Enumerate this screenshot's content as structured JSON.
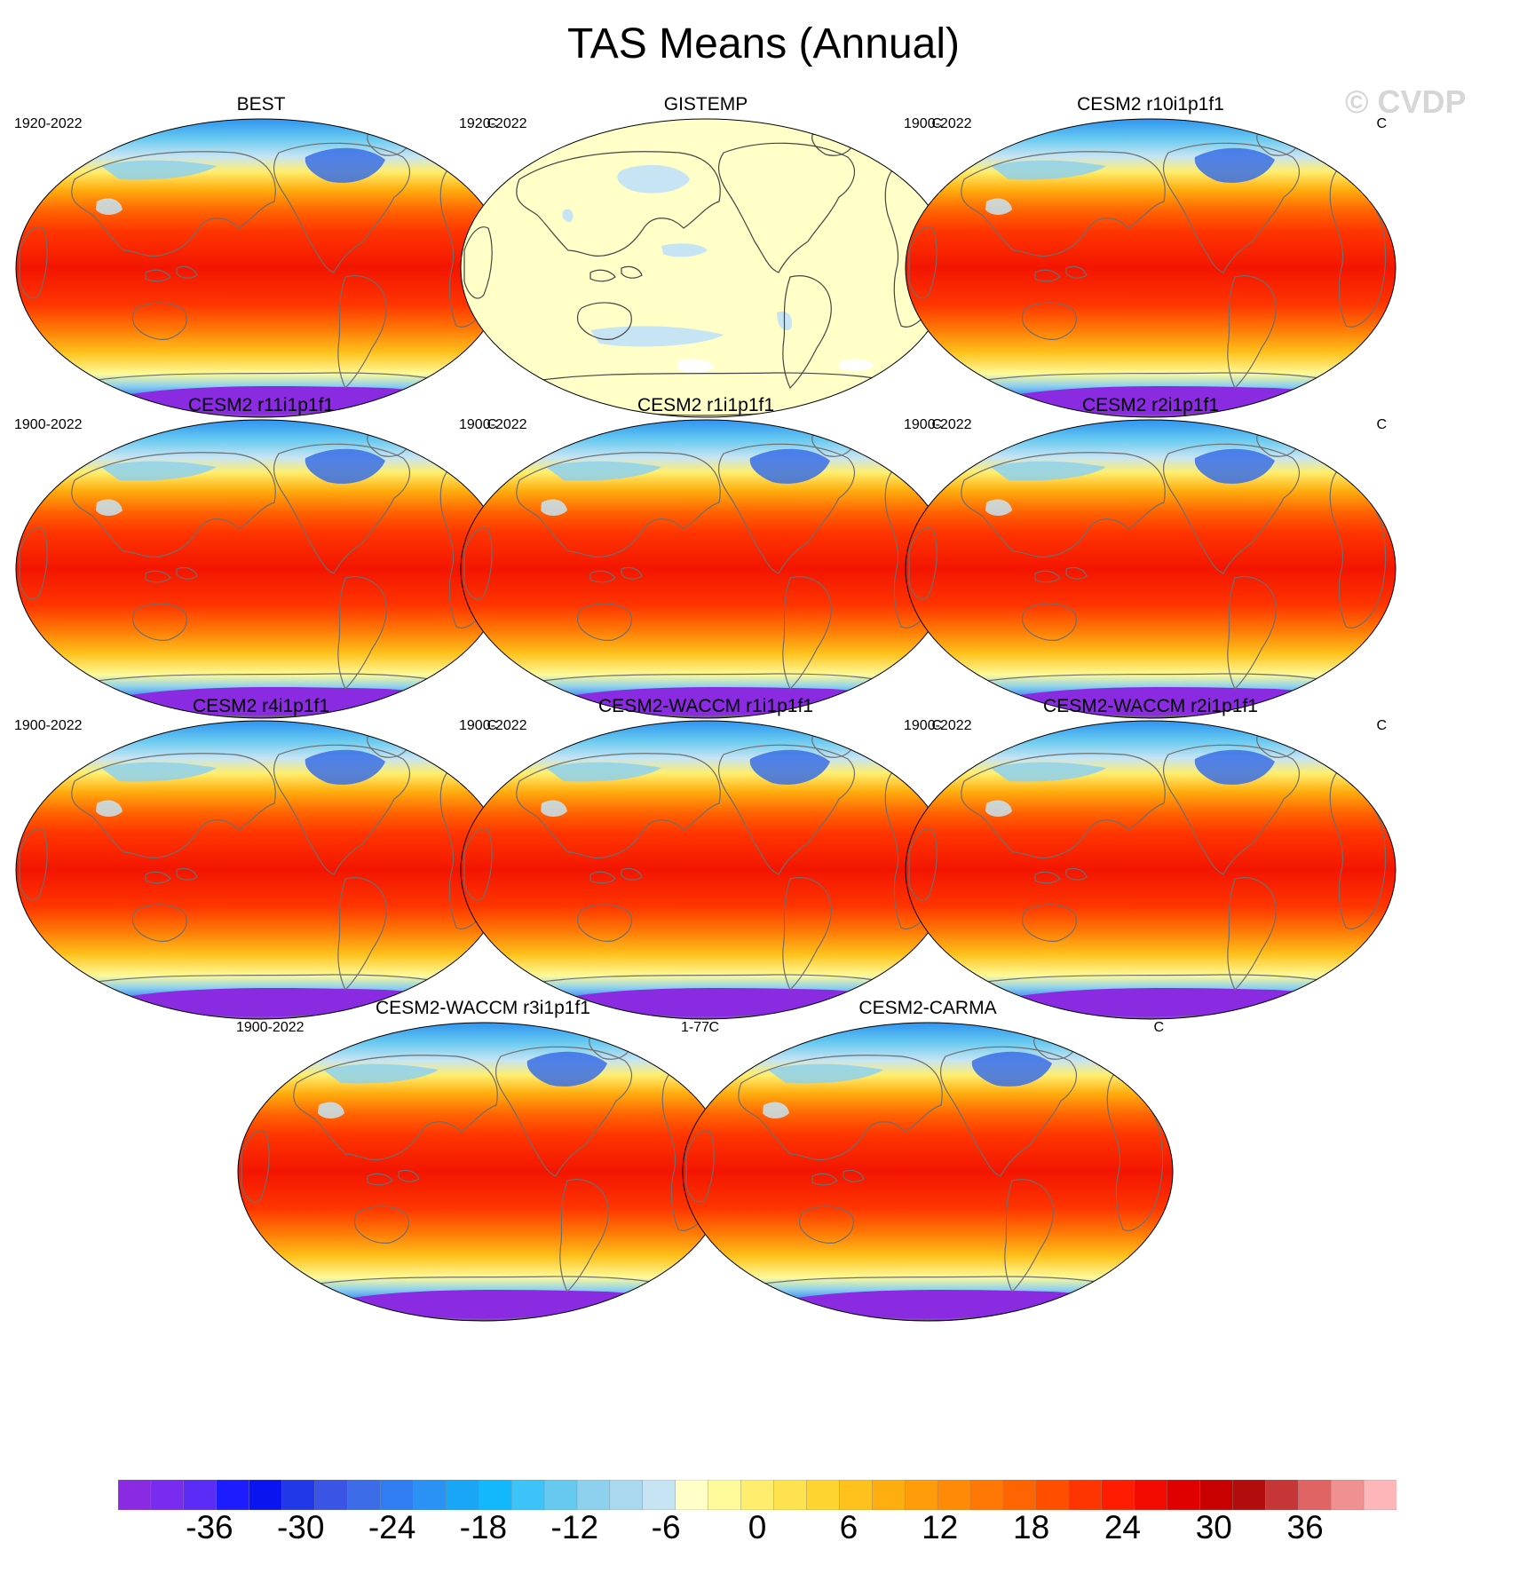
{
  "title": "TAS Means (Annual)",
  "watermark": "© CVDP",
  "units": "C",
  "panels": [
    {
      "title": "BEST",
      "period": "1920-2022",
      "units": "C",
      "style": "full"
    },
    {
      "title": "GISTEMP",
      "period": "1920-2022",
      "units": "C",
      "style": "anomaly"
    },
    {
      "title": "CESM2 r10i1p1f1",
      "period": "1900-2022",
      "units": "C",
      "style": "full"
    },
    {
      "title": "CESM2 r11i1p1f1",
      "period": "1900-2022",
      "units": "C",
      "style": "full"
    },
    {
      "title": "CESM2 r1i1p1f1",
      "period": "1900-2022",
      "units": "C",
      "style": "full"
    },
    {
      "title": "CESM2 r2i1p1f1",
      "period": "1900-2022",
      "units": "C",
      "style": "full"
    },
    {
      "title": "CESM2 r4i1p1f1",
      "period": "1900-2022",
      "units": "C",
      "style": "full"
    },
    {
      "title": "CESM2-WACCM r1i1p1f1",
      "period": "1900-2022",
      "units": "C",
      "style": "full"
    },
    {
      "title": "CESM2-WACCM r2i1p1f1",
      "period": "1900-2022",
      "units": "C",
      "style": "full"
    },
    {
      "title": "CESM2-WACCM r3i1p1f1",
      "period": "1900-2022",
      "units": "C",
      "style": "full"
    },
    {
      "title": "CESM2-CARMA",
      "period": "1-77",
      "units": "C",
      "style": "full"
    }
  ],
  "colorbar": {
    "labels": [
      "-36",
      "-30",
      "-24",
      "-18",
      "-12",
      "-6",
      "0",
      "6",
      "12",
      "18",
      "24",
      "30",
      "36"
    ],
    "label_values": [
      -36,
      -30,
      -24,
      -18,
      -12,
      -6,
      0,
      6,
      12,
      18,
      24,
      30,
      36
    ],
    "min": -42,
    "max": 42,
    "step": 2,
    "colors": [
      "#8a2be2",
      "#7a2bf0",
      "#5a2cf5",
      "#1c1cff",
      "#0a14f0",
      "#2038e8",
      "#3a55e6",
      "#3c6ce8",
      "#2f7df0",
      "#2a92f5",
      "#1aa6f7",
      "#12b8fb",
      "#3cc3f8",
      "#66c9f0",
      "#8ed1ee",
      "#aad8ef",
      "#c6e4f3",
      "#ffffc8",
      "#fffa99",
      "#ffee6e",
      "#ffe24d",
      "#ffd42e",
      "#ffc21c",
      "#ffae0f",
      "#ff9c0a",
      "#ff8a08",
      "#ff7705",
      "#ff6402",
      "#ff4e00",
      "#ff3500",
      "#ff1d00",
      "#f30a00",
      "#e00000",
      "#c80000",
      "#b20c0c",
      "#c63636",
      "#e06464",
      "#f09090",
      "#ffb6b9"
    ]
  }
}
